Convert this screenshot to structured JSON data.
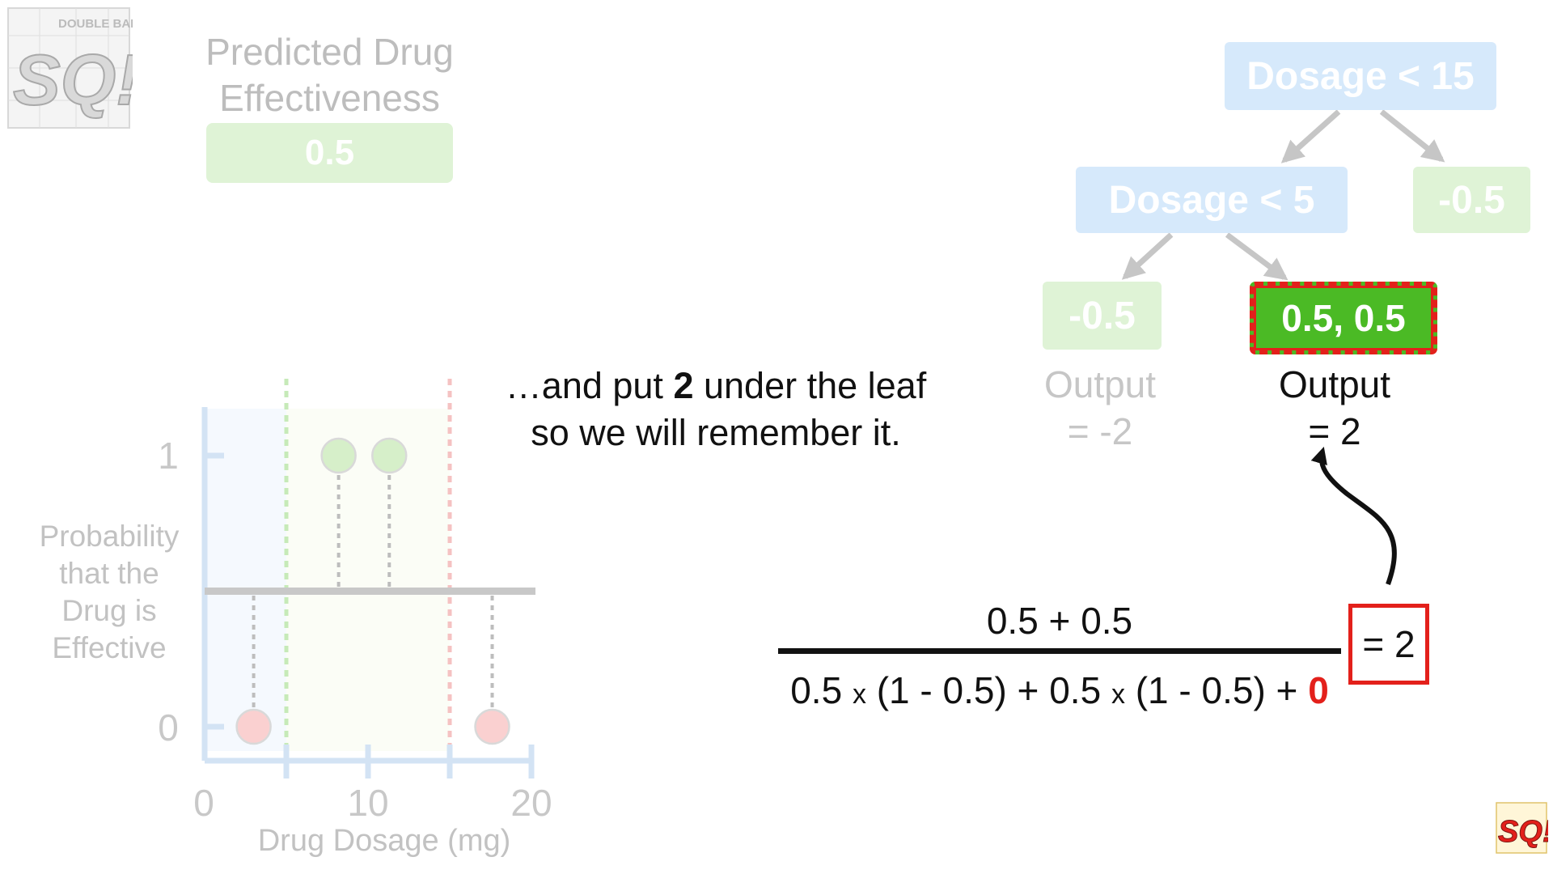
{
  "logo": {
    "main_text": "SQ!",
    "badge_text": "DOUBLE BAM!!"
  },
  "predicted": {
    "title_line1": "Predicted Drug",
    "title_line2": "Effectiveness",
    "value": "0.5",
    "box_color": "#dff3d6"
  },
  "tree": {
    "root": "Dosage < 15",
    "internal": "Dosage < 5",
    "leaf_right": "-0.5",
    "leaf_left": "-0.5",
    "leaf_highlighted": "0.5, 0.5",
    "node_color": "#d6e9fb",
    "leaf_color": "#dff3d6",
    "highlight_color": "#4bba25",
    "highlight_border": "#e3201b"
  },
  "outputs": {
    "left_line1": "Output",
    "left_line2": "= -2",
    "right_line1": "Output",
    "right_line2": "= 2"
  },
  "caption": {
    "part1": "…and put ",
    "bold": "2",
    "part2": " under the leaf",
    "line2": "so we will remember it."
  },
  "equation": {
    "numerator": "0.5 + 0.5",
    "den_a": "0.5 ",
    "den_times1": "x",
    "den_b": " (1 - 0.5) + 0.5 ",
    "den_times2": "x",
    "den_c": " (1 - 0.5) + ",
    "den_zero": "0",
    "result": "= 2"
  },
  "chart_data": {
    "type": "scatter",
    "xlabel": "Drug Dosage (mg)",
    "ylabel": [
      "Probability",
      "that the",
      "Drug is",
      "Effective"
    ],
    "xlim": [
      0,
      20
    ],
    "ylim": [
      0,
      1
    ],
    "x_ticks": [
      "0",
      "10",
      "20"
    ],
    "y_ticks": [
      "0",
      "1"
    ],
    "predicted_line": 0.5,
    "split_lines": [
      {
        "x": 5,
        "color": "#c6eab8"
      },
      {
        "x": 15,
        "color": "#f5c2c2"
      }
    ],
    "points": [
      {
        "x": 3,
        "y": 0,
        "color": "#fad0d0"
      },
      {
        "x": 8.2,
        "y": 1,
        "color": "#d6efc9"
      },
      {
        "x": 11.3,
        "y": 1,
        "color": "#d6efc9"
      },
      {
        "x": 17.6,
        "y": 0,
        "color": "#fad0d0"
      }
    ]
  }
}
